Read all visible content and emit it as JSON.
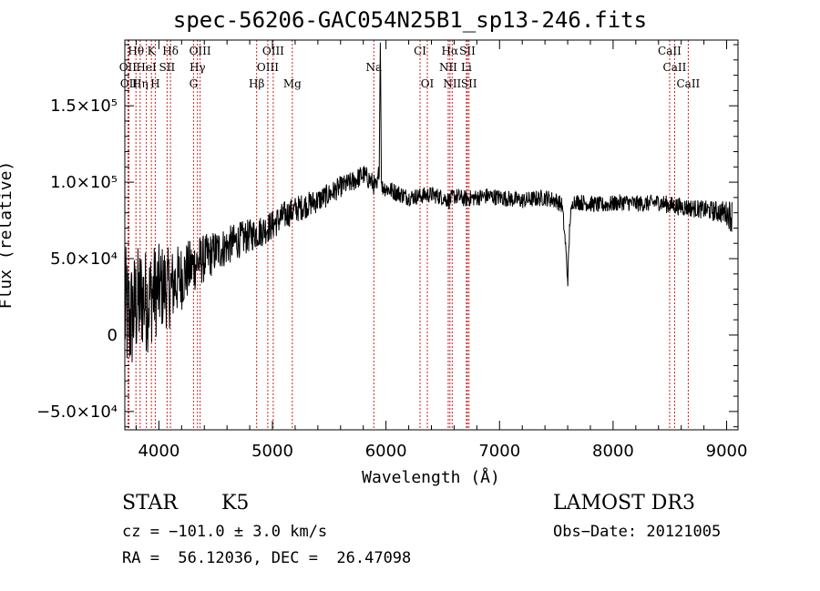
{
  "chart_data": {
    "type": "line",
    "title": "spec-56206-GAC054N25B1_sp13-246.fits",
    "xlabel": "Wavelength (Å)",
    "ylabel": "Flux (relative)",
    "xlim": [
      3700,
      9100
    ],
    "ylim": [
      -62000,
      193000
    ],
    "x_ticks": [
      4000,
      5000,
      6000,
      7000,
      8000,
      9000
    ],
    "x_tick_labels": [
      "4000",
      "5000",
      "6000",
      "7000",
      "8000",
      "9000"
    ],
    "y_ticks": [
      -50000,
      0,
      50000,
      100000,
      150000
    ],
    "y_tick_labels": [
      "−5.0×10⁴",
      "0",
      "5.0×10⁴",
      "1.0×10⁵",
      "1.5×10⁵"
    ],
    "line_color": "#000000",
    "marker_color": "#cc2020",
    "spectrum": {
      "x": [
        3700,
        3750,
        3800,
        3850,
        3900,
        3950,
        4000,
        4050,
        4100,
        4150,
        4200,
        4250,
        4300,
        4350,
        4400,
        4450,
        4500,
        4600,
        4700,
        4800,
        4900,
        5000,
        5100,
        5200,
        5300,
        5400,
        5500,
        5600,
        5700,
        5800,
        5850,
        5900,
        5920,
        5940,
        5950,
        5960,
        5980,
        6000,
        6100,
        6200,
        6300,
        6400,
        6500,
        6560,
        6600,
        6700,
        6800,
        6900,
        7000,
        7100,
        7200,
        7300,
        7400,
        7500,
        7550,
        7580,
        7600,
        7620,
        7650,
        7700,
        7800,
        7900,
        8000,
        8100,
        8200,
        8300,
        8400,
        8500,
        8600,
        8700,
        8800,
        8900,
        9000,
        9050
      ],
      "y": [
        15000,
        10000,
        20000,
        25000,
        22000,
        28000,
        30000,
        32000,
        30000,
        35000,
        38000,
        42000,
        45000,
        48000,
        50000,
        52000,
        55000,
        58000,
        62000,
        65000,
        68000,
        72000,
        78000,
        82000,
        85000,
        88000,
        92000,
        97000,
        100000,
        105000,
        102000,
        98000,
        95000,
        110000,
        195000,
        96000,
        97000,
        96000,
        93000,
        90000,
        91000,
        92000,
        90000,
        88000,
        91000,
        89000,
        90000,
        91000,
        90000,
        89000,
        88000,
        89000,
        90000,
        88000,
        85000,
        60000,
        35000,
        75000,
        88000,
        87000,
        86000,
        85000,
        86000,
        87000,
        86000,
        86000,
        87000,
        85000,
        84000,
        83000,
        82000,
        81000,
        80000,
        78000
      ],
      "noise_amplitude": [
        45000,
        40000,
        38000,
        36000,
        34000,
        32000,
        30000,
        28000,
        26000,
        24000,
        22000,
        20000,
        18000,
        17000,
        16000,
        15000,
        14000,
        13000,
        12000,
        11000,
        10500,
        10000,
        9500,
        9000,
        8500,
        8000,
        7500,
        7000,
        7000,
        7000,
        7000,
        7000,
        6500,
        6000,
        0,
        6000,
        6000,
        6000,
        6000,
        5500,
        5500,
        5500,
        5500,
        5500,
        5500,
        5500,
        5500,
        5500,
        5500,
        5500,
        5500,
        5500,
        5500,
        5500,
        5500,
        5000,
        5000,
        5000,
        5000,
        5500,
        5500,
        5500,
        5500,
        5500,
        5500,
        5500,
        5500,
        6000,
        6000,
        6000,
        6000,
        7000,
        8000,
        12000
      ]
    },
    "lines": [
      {
        "label": "Hθ",
        "wave": 3798,
        "row": 1
      },
      {
        "label": "K",
        "wave": 3934,
        "row": 1
      },
      {
        "label": "Hδ",
        "wave": 4102,
        "row": 1
      },
      {
        "label": "OIII",
        "wave": 4363,
        "row": 1
      },
      {
        "label": "OIII",
        "wave": 5007,
        "row": 1
      },
      {
        "label": "CI",
        "wave": 6300,
        "row": 1
      },
      {
        "label": "Hα",
        "wave": 6563,
        "row": 1
      },
      {
        "label": "SII",
        "wave": 6717,
        "row": 1
      },
      {
        "label": "CaII",
        "wave": 8498,
        "row": 1
      },
      {
        "label": "OII",
        "wave": 3727,
        "row": 2
      },
      {
        "label": "HeI",
        "wave": 3889,
        "row": 2
      },
      {
        "label": "SII",
        "wave": 4072,
        "row": 2
      },
      {
        "label": "Hγ",
        "wave": 4340,
        "row": 2
      },
      {
        "label": "OIII",
        "wave": 4959,
        "row": 2
      },
      {
        "label": "Na",
        "wave": 5893,
        "row": 2
      },
      {
        "label": "NII",
        "wave": 6548,
        "row": 2
      },
      {
        "label": "Li",
        "wave": 6708,
        "row": 2
      },
      {
        "label": "CaII",
        "wave": 8542,
        "row": 2
      },
      {
        "label": "OII",
        "wave": 3736,
        "row": 3
      },
      {
        "label": "Hη",
        "wave": 3835,
        "row": 3
      },
      {
        "label": "H",
        "wave": 3968,
        "row": 3
      },
      {
        "label": "G",
        "wave": 4305,
        "row": 3
      },
      {
        "label": "Hβ",
        "wave": 4861,
        "row": 3
      },
      {
        "label": "Mg",
        "wave": 5175,
        "row": 3
      },
      {
        "label": "OI",
        "wave": 6364,
        "row": 3
      },
      {
        "label": "NII",
        "wave": 6583,
        "row": 3
      },
      {
        "label": "SII",
        "wave": 6731,
        "row": 3
      },
      {
        "label": "CaII",
        "wave": 8662,
        "row": 3
      }
    ]
  },
  "info": {
    "obj_class": "STAR",
    "subclass": "K5",
    "survey": "LAMOST DR3",
    "cz": "cz = −101.0 ± 3.0 km/s",
    "obs_date": "Obs−Date: 20121005",
    "coords": "RA =  56.12036, DEC =  26.47098"
  }
}
